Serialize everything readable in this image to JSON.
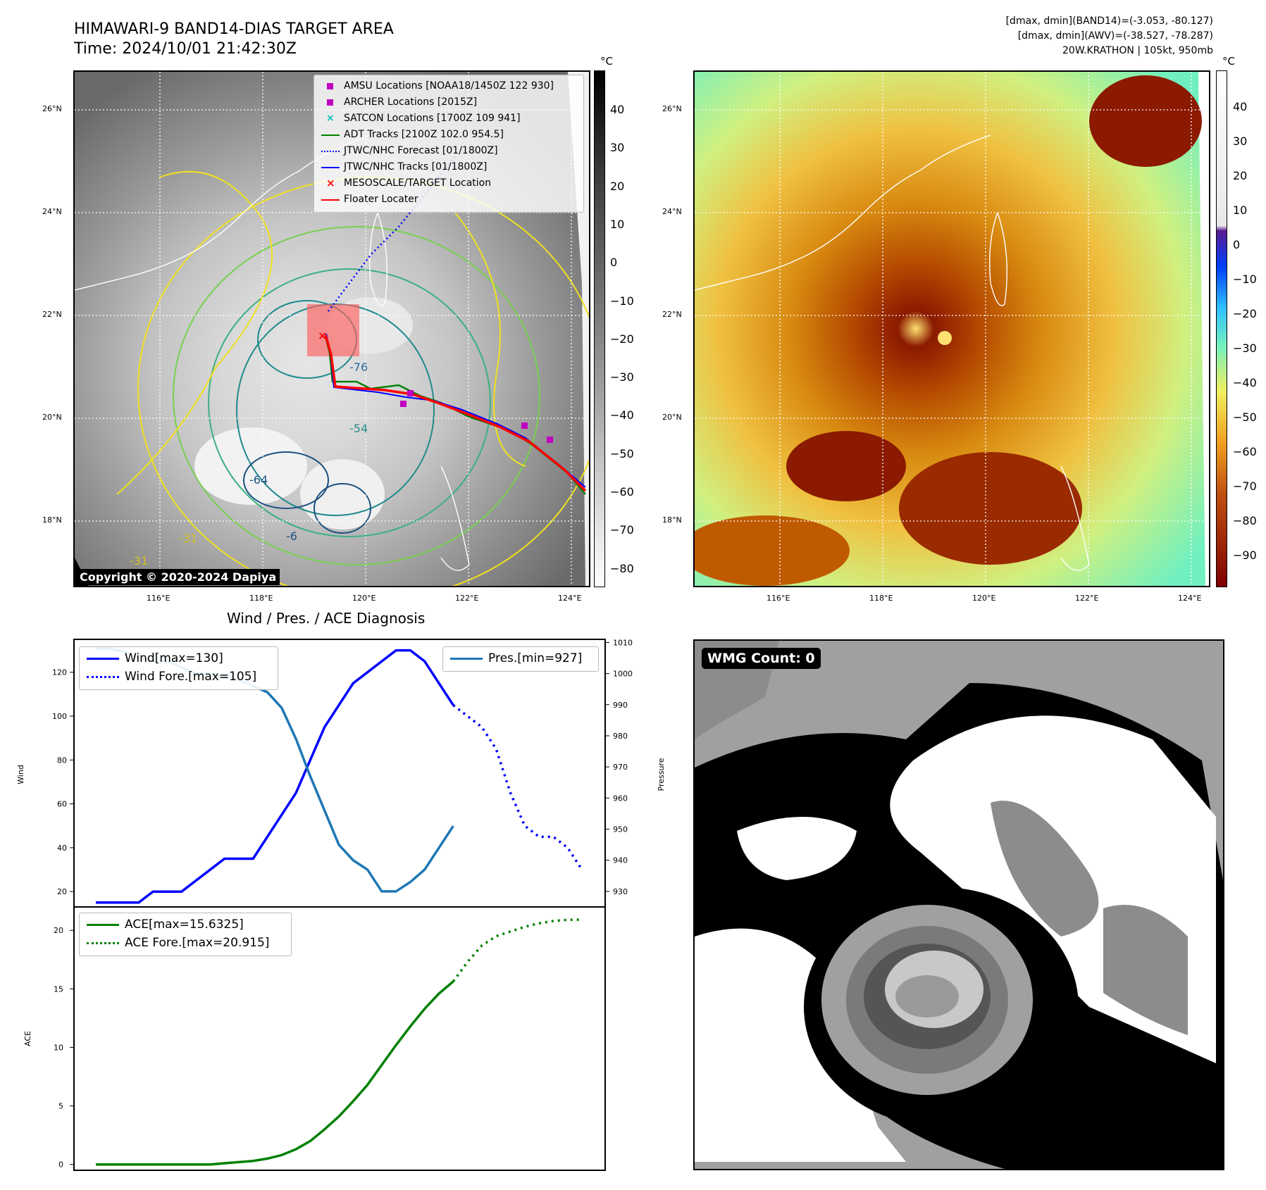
{
  "header": {
    "title_line1": "HIMAWARI-9 BAND14-DIAS TARGET AREA",
    "title_line2": "Time: 2024/10/01 21:42:30Z",
    "info_line1": "[dmax, dmin](BAND14)=(-3.053, -80.127)",
    "info_line2": "[dmax, dmin](AWV)=(-38.527, -78.287)",
    "info_line3": "20W.KRATHON | 105kt, 950mb"
  },
  "map": {
    "lat_labels": [
      "26°N",
      "24°N",
      "22°N",
      "20°N",
      "18°N"
    ],
    "lon_labels": [
      "116°E",
      "118°E",
      "120°E",
      "122°E",
      "124°E"
    ],
    "copyright": "Copyright © 2020-2024 Dapiya",
    "contour_labels": [
      "-76",
      "-54",
      "-64",
      "-31",
      "-6",
      "-31"
    ]
  },
  "ir_colorbar": {
    "unit": "°C",
    "ticks": [
      "40",
      "30",
      "20",
      "10",
      "0",
      "−10",
      "−20",
      "−30",
      "−40",
      "−50",
      "−60",
      "−70",
      "−80"
    ]
  },
  "awv_colorbar": {
    "unit": "°C",
    "ticks": [
      "40",
      "30",
      "20",
      "10",
      "0",
      "−10",
      "−20",
      "−30",
      "−40",
      "−50",
      "−60",
      "−70",
      "−80",
      "−90"
    ]
  },
  "legend": {
    "items": [
      {
        "label": "AMSU Locations [NOAA18/1450Z 122 930]",
        "color": "#c000c0",
        "kind": "square"
      },
      {
        "label": "ARCHER Locations [2015Z]",
        "color": "#c000c0",
        "kind": "square"
      },
      {
        "label": "SATCON Locations [1700Z 109 941]",
        "color": "#00c0c0",
        "kind": "x"
      },
      {
        "label": "ADT Tracks [2100Z 102.0 954.5]",
        "color": "#008000",
        "kind": "line"
      },
      {
        "label": "JTWC/NHC Forecast [01/1800Z]",
        "color": "#0000ff",
        "kind": "dotted"
      },
      {
        "label": "JTWC/NHC Tracks [01/1800Z]",
        "color": "#0000ff",
        "kind": "dotline"
      },
      {
        "label": "MESOSCALE/TARGET Location",
        "color": "#ff0000",
        "kind": "x"
      },
      {
        "label": "Floater Locater",
        "color": "#ff0000",
        "kind": "line"
      }
    ]
  },
  "diagnosis": {
    "title": "Wind / Pres. / ACE Diagnosis",
    "wind_ylabel": "Wind",
    "pres_ylabel": "Pressure",
    "ace_ylabel": "ACE",
    "wind_legend": "Wind[max=130]",
    "wind_fore_legend": "Wind Fore.[max=105]",
    "pres_legend": "Pres.[min=927]",
    "ace_legend": "ACE[max=15.6325]",
    "ace_fore_legend": "ACE Fore.[max=20.915]"
  },
  "wmg": {
    "label": "WMG Count: 0"
  },
  "chart_data": [
    {
      "type": "line",
      "title": "Wind / Pres. / ACE Diagnosis",
      "ylabel": "Wind",
      "ylim": [
        13,
        135
      ],
      "yticks": [
        20,
        40,
        60,
        80,
        100,
        120
      ],
      "x": [
        0,
        1,
        2,
        3,
        4,
        5,
        6,
        7,
        8,
        9,
        10,
        11,
        12,
        13,
        14,
        15,
        16,
        17,
        18,
        19,
        20,
        21,
        22,
        23,
        24,
        25,
        26,
        27,
        28,
        29,
        30,
        31,
        32,
        33,
        34
      ],
      "series": [
        {
          "name": "Wind[max=130]",
          "color": "#0000ff",
          "style": "solid",
          "x": [
            0,
            1,
            2,
            3,
            4,
            5,
            6,
            7,
            8,
            9,
            10,
            11,
            12,
            13,
            14,
            15,
            16,
            17,
            18,
            19,
            20,
            21,
            22,
            23,
            24,
            25
          ],
          "values": [
            15,
            15,
            15,
            15,
            20,
            20,
            20,
            25,
            30,
            35,
            35,
            35,
            45,
            55,
            65,
            80,
            95,
            105,
            115,
            120,
            125,
            130,
            130,
            125,
            115,
            105
          ]
        },
        {
          "name": "Wind Fore.[max=105]",
          "color": "#0000ff",
          "style": "dotted",
          "x": [
            25,
            26,
            27,
            28,
            29,
            30,
            31,
            32,
            33,
            34
          ],
          "values": [
            105,
            100,
            95,
            85,
            65,
            50,
            45,
            45,
            40,
            30
          ]
        }
      ]
    },
    {
      "type": "line",
      "ylabel": "Pressure",
      "ylim": [
        925,
        1011
      ],
      "yticks": [
        930,
        940,
        950,
        960,
        970,
        980,
        990,
        1000,
        1010
      ],
      "series": [
        {
          "name": "Pres.[min=927]",
          "color": "#1f77b4",
          "style": "solid",
          "x": [
            0,
            1,
            2,
            3,
            4,
            5,
            6,
            7,
            8,
            9,
            10,
            11,
            12,
            13,
            14,
            15,
            16,
            17,
            18,
            19,
            20,
            21,
            22,
            23,
            24,
            25
          ],
          "values": [
            1008,
            1008,
            1007,
            1005,
            1004,
            1004,
            1002,
            1000,
            1000,
            999,
            998,
            996,
            994,
            989,
            979,
            967,
            956,
            945,
            940,
            937,
            930,
            930,
            933,
            937,
            944,
            951
          ]
        }
      ]
    },
    {
      "type": "line",
      "ylabel": "ACE",
      "ylim": [
        -0.5,
        22
      ],
      "yticks": [
        0,
        5,
        10,
        15,
        20
      ],
      "series": [
        {
          "name": "ACE[max=15.6325]",
          "color": "#008000",
          "style": "solid",
          "x": [
            0,
            1,
            2,
            3,
            4,
            5,
            6,
            7,
            8,
            9,
            10,
            11,
            12,
            13,
            14,
            15,
            16,
            17,
            18,
            19,
            20,
            21,
            22,
            23,
            24,
            25
          ],
          "values": [
            0,
            0,
            0,
            0,
            0,
            0,
            0,
            0,
            0,
            0.1,
            0.2,
            0.3,
            0.5,
            0.8,
            1.3,
            2.0,
            3.0,
            4.1,
            5.4,
            6.8,
            8.5,
            10.2,
            11.8,
            13.3,
            14.6,
            15.6325
          ]
        },
        {
          "name": "ACE Fore.[max=20.915]",
          "color": "#008000",
          "style": "dotted",
          "x": [
            25,
            26,
            27,
            28,
            29,
            30,
            31,
            32,
            33,
            34
          ],
          "values": [
            15.6325,
            17.3,
            18.7,
            19.5,
            19.9,
            20.3,
            20.6,
            20.8,
            20.9,
            20.915
          ]
        }
      ]
    }
  ]
}
